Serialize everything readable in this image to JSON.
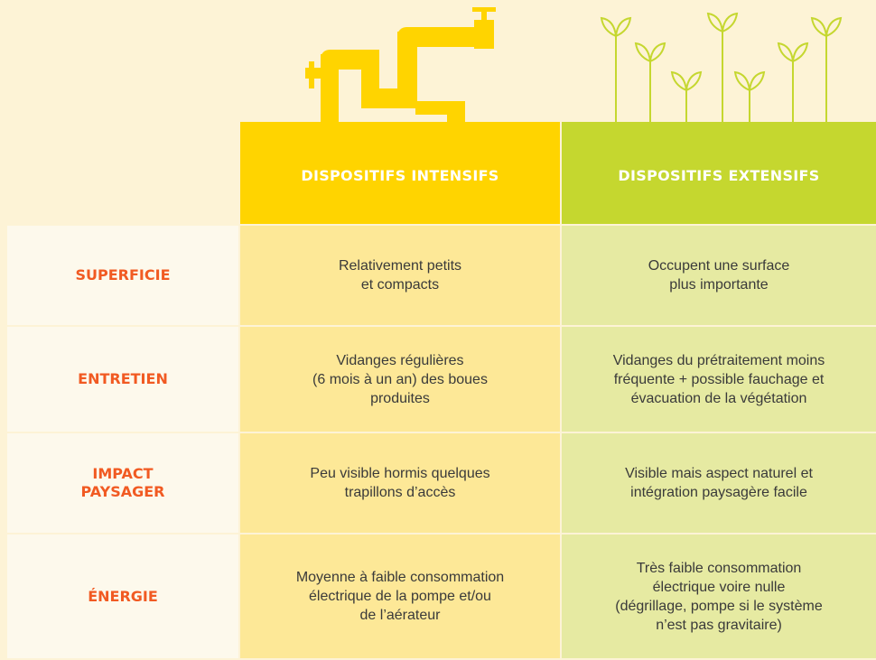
{
  "header": {
    "intensive": "DISPOSITIFS INTENSIFS",
    "extensive": "DISPOSITIFS EXTENSIFS"
  },
  "rows": [
    {
      "label": [
        "SUPERFICIE"
      ],
      "intensive": [
        "Relativement petits",
        "et compacts"
      ],
      "extensive": [
        "Occupent une surface",
        "plus importante"
      ]
    },
    {
      "label": [
        "ENTRETIEN"
      ],
      "intensive": [
        "Vidanges régulières",
        "(6 mois à un an) des boues",
        "produites"
      ],
      "extensive": [
        "Vidanges du prétraitement moins",
        "fréquente + possible fauchage et",
        "évacuation de la végétation"
      ]
    },
    {
      "label": [
        "IMPACT",
        "PAYSAGER"
      ],
      "intensive": [
        "Peu visible hormis quelques",
        "trapillons d’accès"
      ],
      "extensive": [
        "Visible mais aspect naturel et",
        "intégration paysagère facile"
      ]
    },
    {
      "label": [
        "ÉNERGIE"
      ],
      "intensive": [
        "Moyenne à faible consommation",
        "électrique de la pompe et/ou",
        "de l’aérateur"
      ],
      "extensive": [
        "Très faible consommation",
        "électrique voire nulle",
        "(dégrillage, pompe si le système",
        "n’est pas gravitaire)"
      ]
    }
  ]
}
